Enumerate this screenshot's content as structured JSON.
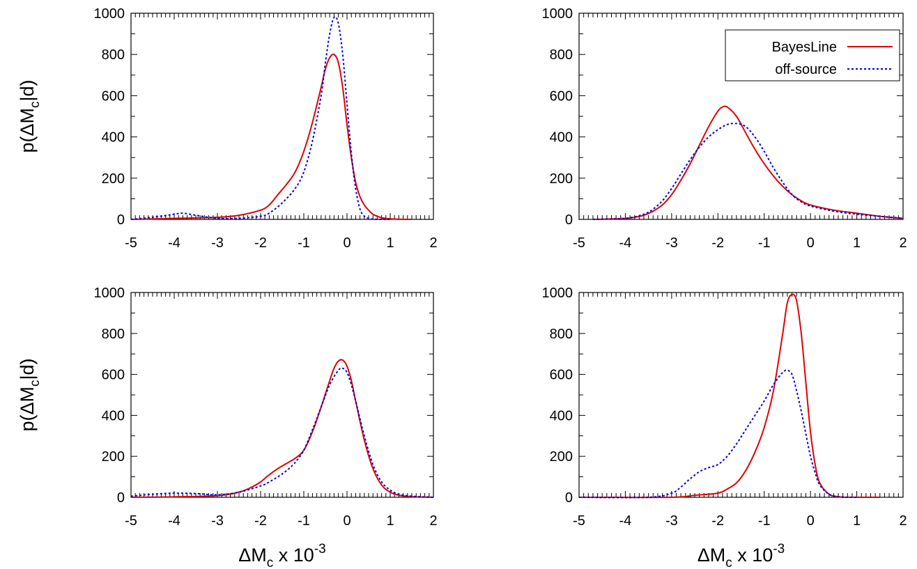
{
  "chart_data": [
    {
      "type": "line",
      "panel": "top-left",
      "xlabel": "",
      "ylabel": "p(ΔMc|d)",
      "xlim": [
        -5,
        2
      ],
      "ylim": [
        0,
        1000
      ],
      "xticks": [
        "-5",
        "-4",
        "-3",
        "-2",
        "-1",
        "0",
        "1",
        "2"
      ],
      "yticks": [
        "0",
        "200",
        "400",
        "600",
        "800",
        "1000"
      ],
      "legend": false,
      "series": [
        {
          "name": "BayesLine",
          "color": "#e00000",
          "dash": "solid",
          "x": [
            -5,
            -4,
            -3,
            -2.5,
            -2,
            -1.8,
            -1.6,
            -1.4,
            -1.2,
            -1,
            -0.8,
            -0.6,
            -0.5,
            -0.4,
            -0.3,
            -0.2,
            -0.1,
            0,
            0.1,
            0.2,
            0.3,
            0.4,
            0.5,
            0.6,
            0.8,
            1,
            1.2,
            1.5
          ],
          "y": [
            0,
            5,
            10,
            20,
            45,
            70,
            120,
            170,
            230,
            330,
            470,
            640,
            730,
            785,
            800,
            760,
            640,
            460,
            300,
            180,
            110,
            70,
            45,
            25,
            8,
            3,
            1,
            0
          ]
        },
        {
          "name": "off-source",
          "color": "#0000e0",
          "dash": "dotted",
          "x": [
            -5,
            -4.5,
            -4,
            -3.8,
            -3.5,
            -3,
            -2.5,
            -2,
            -1.8,
            -1.5,
            -1.2,
            -1,
            -0.8,
            -0.6,
            -0.5,
            -0.4,
            -0.3,
            -0.2,
            -0.1,
            0,
            0.1,
            0.2,
            0.3,
            0.4,
            0.5,
            0.6,
            0.8,
            1
          ],
          "y": [
            0,
            10,
            25,
            30,
            20,
            5,
            5,
            15,
            30,
            80,
            150,
            230,
            380,
            600,
            760,
            900,
            980,
            950,
            800,
            560,
            320,
            150,
            50,
            15,
            5,
            1,
            0,
            0
          ]
        }
      ]
    },
    {
      "type": "line",
      "panel": "top-right",
      "xlabel": "",
      "ylabel": "",
      "xlim": [
        -5,
        2
      ],
      "ylim": [
        0,
        1000
      ],
      "xticks": [
        "-5",
        "-4",
        "-3",
        "-2",
        "-1",
        "0",
        "1",
        "2"
      ],
      "yticks": [
        "0",
        "200",
        "400",
        "600",
        "800",
        "1000"
      ],
      "legend": true,
      "legend_position": "top-right",
      "series": [
        {
          "name": "BayesLine",
          "color": "#e00000",
          "dash": "solid",
          "x": [
            -4.7,
            -4,
            -3.8,
            -3.6,
            -3.4,
            -3.2,
            -3,
            -2.8,
            -2.6,
            -2.4,
            -2.2,
            -2,
            -1.9,
            -1.8,
            -1.6,
            -1.4,
            -1.2,
            -1,
            -0.8,
            -0.6,
            -0.4,
            -0.2,
            0,
            0.5,
            1,
            1.5,
            2
          ],
          "y": [
            0,
            5,
            10,
            20,
            40,
            70,
            120,
            190,
            270,
            360,
            450,
            525,
            545,
            545,
            500,
            420,
            340,
            270,
            210,
            160,
            120,
            90,
            70,
            45,
            30,
            15,
            5
          ]
        },
        {
          "name": "off-source",
          "color": "#0000e0",
          "dash": "dotted",
          "x": [
            -4.7,
            -4,
            -3.6,
            -3.4,
            -3.2,
            -3,
            -2.8,
            -2.6,
            -2.4,
            -2.2,
            -2,
            -1.8,
            -1.6,
            -1.4,
            -1.2,
            -1,
            -0.8,
            -0.6,
            -0.4,
            -0.2,
            0,
            0.5,
            1,
            1.5,
            2
          ],
          "y": [
            0,
            5,
            25,
            50,
            90,
            150,
            220,
            290,
            350,
            400,
            435,
            460,
            465,
            450,
            400,
            330,
            250,
            180,
            120,
            85,
            65,
            40,
            25,
            15,
            5
          ]
        }
      ]
    },
    {
      "type": "line",
      "panel": "bottom-left",
      "xlabel": "ΔMc x 10-3",
      "ylabel": "p(ΔMc|d)",
      "xlim": [
        -5,
        2
      ],
      "ylim": [
        0,
        1000
      ],
      "xticks": [
        "-5",
        "-4",
        "-3",
        "-2",
        "-1",
        "0",
        "1",
        "2"
      ],
      "yticks": [
        "0",
        "200",
        "400",
        "600",
        "800",
        "1000"
      ],
      "legend": false,
      "series": [
        {
          "name": "BayesLine",
          "color": "#e00000",
          "dash": "solid",
          "x": [
            -5,
            -4,
            -3,
            -2.5,
            -2.2,
            -2,
            -1.8,
            -1.6,
            -1.4,
            -1.2,
            -1,
            -0.8,
            -0.6,
            -0.4,
            -0.3,
            -0.2,
            -0.1,
            0,
            0.1,
            0.2,
            0.4,
            0.6,
            0.8,
            1,
            1.2,
            1.5,
            2
          ],
          "y": [
            0,
            2,
            8,
            25,
            50,
            75,
            110,
            140,
            165,
            190,
            230,
            320,
            440,
            570,
            630,
            665,
            670,
            640,
            570,
            470,
            280,
            140,
            60,
            25,
            10,
            3,
            0
          ]
        },
        {
          "name": "off-source",
          "color": "#0000e0",
          "dash": "dotted",
          "x": [
            -5,
            -4.5,
            -4,
            -3.5,
            -3,
            -2.5,
            -2,
            -1.8,
            -1.6,
            -1.4,
            -1.2,
            -1,
            -0.8,
            -0.6,
            -0.4,
            -0.2,
            -0.1,
            0,
            0.1,
            0.2,
            0.4,
            0.6,
            0.8,
            1,
            1.2,
            1.5,
            2
          ],
          "y": [
            5,
            15,
            20,
            18,
            12,
            25,
            55,
            75,
            100,
            130,
            170,
            230,
            330,
            440,
            550,
            620,
            630,
            610,
            550,
            470,
            300,
            160,
            75,
            35,
            15,
            5,
            0
          ]
        }
      ]
    },
    {
      "type": "line",
      "panel": "bottom-right",
      "xlabel": "ΔMc x 10-3",
      "ylabel": "",
      "xlim": [
        -5,
        2
      ],
      "ylim": [
        0,
        1000
      ],
      "xticks": [
        "-5",
        "-4",
        "-3",
        "-2",
        "-1",
        "0",
        "1",
        "2"
      ],
      "yticks": [
        "0",
        "200",
        "400",
        "600",
        "800",
        "1000"
      ],
      "legend": false,
      "series": [
        {
          "name": "BayesLine",
          "color": "#e00000",
          "dash": "solid",
          "x": [
            -5,
            -3,
            -2.5,
            -2,
            -1.8,
            -1.6,
            -1.4,
            -1.2,
            -1,
            -0.8,
            -0.6,
            -0.5,
            -0.4,
            -0.3,
            -0.2,
            -0.1,
            0,
            0.1,
            0.2,
            0.4,
            0.6,
            0.8,
            1,
            1.5
          ],
          "y": [
            0,
            0,
            10,
            20,
            40,
            70,
            130,
            220,
            340,
            520,
            800,
            950,
            990,
            960,
            800,
            560,
            320,
            160,
            70,
            15,
            3,
            0,
            0,
            0
          ]
        },
        {
          "name": "off-source",
          "color": "#0000e0",
          "dash": "dotted",
          "x": [
            -5,
            -3.5,
            -3,
            -2.8,
            -2.6,
            -2.4,
            -2.2,
            -2,
            -1.8,
            -1.6,
            -1.4,
            -1.2,
            -1,
            -0.8,
            -0.6,
            -0.5,
            -0.4,
            -0.3,
            -0.2,
            -0.1,
            0,
            0.1,
            0.2,
            0.4,
            0.6,
            0.8,
            1
          ],
          "y": [
            0,
            0,
            20,
            50,
            90,
            125,
            145,
            160,
            200,
            260,
            330,
            400,
            470,
            550,
            610,
            620,
            600,
            520,
            420,
            310,
            200,
            120,
            60,
            15,
            3,
            0,
            0
          ]
        }
      ]
    }
  ]
}
